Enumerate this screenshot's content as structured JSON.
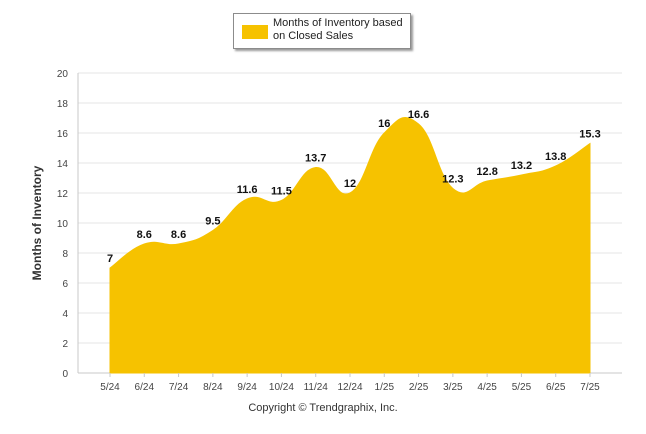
{
  "chart_data": {
    "type": "area",
    "categories": [
      "5/24",
      "6/24",
      "7/24",
      "8/24",
      "9/24",
      "10/24",
      "11/24",
      "12/24",
      "1/25",
      "2/25",
      "3/25",
      "4/25",
      "5/25",
      "6/25",
      "7/25"
    ],
    "series": [
      {
        "name": "Months of Inventory based on Closed Sales",
        "values": [
          7,
          8.6,
          8.6,
          9.5,
          11.6,
          11.5,
          13.7,
          12,
          16,
          16.6,
          12.3,
          12.8,
          13.2,
          13.8,
          15.3
        ],
        "labels": [
          "7",
          "8.6",
          "8.6",
          "9.5",
          "11.6",
          "11.5",
          "13.7",
          "12",
          "16",
          "16.6",
          "12.3",
          "12.8",
          "13.2",
          "13.8",
          "15.3"
        ],
        "color": "#f6c200"
      }
    ],
    "ylabel": "Months of Inventory",
    "yticks": [
      "0",
      "2",
      "4",
      "6",
      "8",
      "10",
      "12",
      "14",
      "16",
      "18",
      "20"
    ],
    "ylim": [
      0,
      20
    ],
    "grid": true,
    "legend_position": "top-center"
  },
  "footer": {
    "copyright": "Copyright © Trendgraphix, Inc."
  }
}
